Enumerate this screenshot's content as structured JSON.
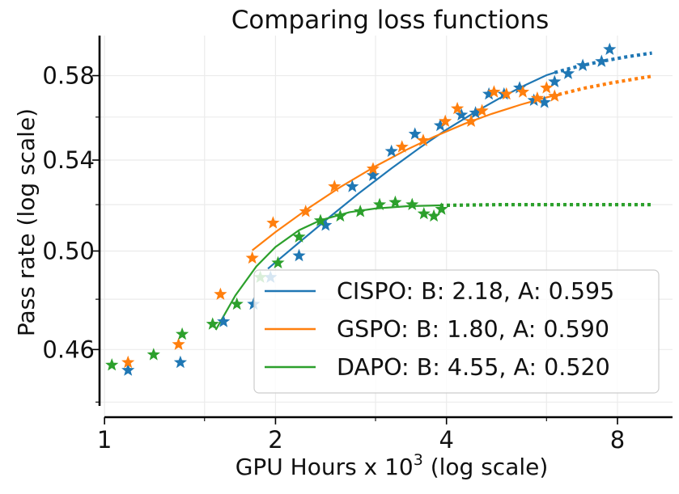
{
  "chart_data": {
    "type": "scatter",
    "title": "Comparing loss functions",
    "xlabel_parts": [
      "GPU Hours x 10",
      "3",
      " (log scale)"
    ],
    "ylabel": "Pass rate (log scale)",
    "x_scale": "log2",
    "y_scale": "log",
    "xlim": [
      0.98,
      10.0
    ],
    "ylim": [
      0.435,
      0.6
    ],
    "x_ticks": [
      {
        "value": 1,
        "label": "1"
      },
      {
        "value": 2,
        "label": "2"
      },
      {
        "value": 4,
        "label": "4"
      },
      {
        "value": 8,
        "label": "8"
      }
    ],
    "y_ticks": [
      {
        "value": 0.46,
        "label": "0.46"
      },
      {
        "value": 0.5,
        "label": "0.50"
      },
      {
        "value": 0.54,
        "label": "0.54"
      },
      {
        "value": 0.58,
        "label": "0.58"
      }
    ],
    "grid": true,
    "legend_position": "bottom-right",
    "marker": "star",
    "series": [
      {
        "name": "CISPO: B: 2.18, A: 0.595",
        "color": "#1f77b4",
        "points": [
          {
            "x": 1.1,
            "y": 0.452
          },
          {
            "x": 1.36,
            "y": 0.455
          },
          {
            "x": 1.62,
            "y": 0.471
          },
          {
            "x": 1.83,
            "y": 0.478
          },
          {
            "x": 1.96,
            "y": 0.489
          },
          {
            "x": 2.2,
            "y": 0.498
          },
          {
            "x": 2.45,
            "y": 0.511
          },
          {
            "x": 2.73,
            "y": 0.528
          },
          {
            "x": 2.97,
            "y": 0.533
          },
          {
            "x": 3.2,
            "y": 0.544
          },
          {
            "x": 3.52,
            "y": 0.552
          },
          {
            "x": 3.9,
            "y": 0.556
          },
          {
            "x": 4.25,
            "y": 0.561
          },
          {
            "x": 4.5,
            "y": 0.562
          },
          {
            "x": 4.75,
            "y": 0.571
          },
          {
            "x": 5.05,
            "y": 0.571
          },
          {
            "x": 5.38,
            "y": 0.574
          },
          {
            "x": 5.7,
            "y": 0.568
          },
          {
            "x": 5.95,
            "y": 0.567
          },
          {
            "x": 6.2,
            "y": 0.577
          },
          {
            "x": 6.55,
            "y": 0.581
          },
          {
            "x": 6.95,
            "y": 0.585
          },
          {
            "x": 7.5,
            "y": 0.587
          },
          {
            "x": 7.75,
            "y": 0.593
          }
        ],
        "fit_solid": [
          [
            1.94,
            0.4926
          ],
          [
            2.2,
            0.5036
          ],
          [
            2.5,
            0.5149
          ],
          [
            2.8,
            0.5249
          ],
          [
            3.2,
            0.5362
          ],
          [
            3.6,
            0.5459
          ],
          [
            4.0,
            0.5541
          ],
          [
            4.5,
            0.5625
          ],
          [
            5.0,
            0.5695
          ],
          [
            5.5,
            0.5753
          ],
          [
            6.0,
            0.5802
          ],
          [
            6.2,
            0.5815
          ]
        ],
        "fit_dotted": [
          [
            6.2,
            0.5815
          ],
          [
            6.8,
            0.5845
          ],
          [
            7.5,
            0.5871
          ],
          [
            8.3,
            0.5893
          ],
          [
            9.2,
            0.5912
          ]
        ]
      },
      {
        "name": "GSPO: B: 1.80, A: 0.590",
        "color": "#ff7f0e",
        "points": [
          {
            "x": 1.1,
            "y": 0.455
          },
          {
            "x": 1.35,
            "y": 0.462
          },
          {
            "x": 1.6,
            "y": 0.482
          },
          {
            "x": 1.82,
            "y": 0.497
          },
          {
            "x": 1.98,
            "y": 0.512
          },
          {
            "x": 2.26,
            "y": 0.517
          },
          {
            "x": 2.54,
            "y": 0.528
          },
          {
            "x": 2.97,
            "y": 0.536
          },
          {
            "x": 3.34,
            "y": 0.546
          },
          {
            "x": 3.64,
            "y": 0.549
          },
          {
            "x": 3.98,
            "y": 0.558
          },
          {
            "x": 4.18,
            "y": 0.564
          },
          {
            "x": 4.42,
            "y": 0.558
          },
          {
            "x": 4.62,
            "y": 0.563
          },
          {
            "x": 4.85,
            "y": 0.572
          },
          {
            "x": 5.1,
            "y": 0.571
          },
          {
            "x": 5.45,
            "y": 0.572
          },
          {
            "x": 5.78,
            "y": 0.569
          },
          {
            "x": 6.0,
            "y": 0.574
          },
          {
            "x": 6.2,
            "y": 0.57
          }
        ],
        "fit_solid": [
          [
            1.82,
            0.5003
          ],
          [
            2.0,
            0.5081
          ],
          [
            2.3,
            0.5189
          ],
          [
            2.6,
            0.5278
          ],
          [
            3.0,
            0.5372
          ],
          [
            3.4,
            0.5447
          ],
          [
            3.8,
            0.5507
          ],
          [
            4.3,
            0.5568
          ],
          [
            4.8,
            0.5615
          ],
          [
            5.4,
            0.5659
          ],
          [
            6.0,
            0.5694
          ],
          [
            6.3,
            0.5708
          ]
        ],
        "fit_dotted": [
          [
            6.3,
            0.5708
          ],
          [
            7.0,
            0.5739
          ],
          [
            7.8,
            0.5764
          ],
          [
            8.6,
            0.5784
          ],
          [
            9.2,
            0.5797
          ]
        ]
      },
      {
        "name": "DAPO: B: 4.55, A: 0.520",
        "color": "#2ca02c",
        "points": [
          {
            "x": 1.03,
            "y": 0.454
          },
          {
            "x": 1.22,
            "y": 0.458
          },
          {
            "x": 1.37,
            "y": 0.466
          },
          {
            "x": 1.55,
            "y": 0.47
          },
          {
            "x": 1.71,
            "y": 0.478
          },
          {
            "x": 1.88,
            "y": 0.489
          },
          {
            "x": 2.02,
            "y": 0.495
          },
          {
            "x": 2.2,
            "y": 0.506
          },
          {
            "x": 2.4,
            "y": 0.513
          },
          {
            "x": 2.6,
            "y": 0.515
          },
          {
            "x": 2.82,
            "y": 0.517
          },
          {
            "x": 3.05,
            "y": 0.52
          },
          {
            "x": 3.25,
            "y": 0.521
          },
          {
            "x": 3.48,
            "y": 0.52
          },
          {
            "x": 3.65,
            "y": 0.516
          },
          {
            "x": 3.8,
            "y": 0.515
          },
          {
            "x": 3.92,
            "y": 0.518
          }
        ],
        "fit_solid": [
          [
            1.57,
            0.4677
          ],
          [
            1.7,
            0.4816
          ],
          [
            1.85,
            0.4935
          ],
          [
            2.0,
            0.5017
          ],
          [
            2.2,
            0.5089
          ],
          [
            2.4,
            0.5132
          ],
          [
            2.7,
            0.5167
          ],
          [
            3.0,
            0.5183
          ],
          [
            3.4,
            0.5193
          ],
          [
            3.9,
            0.5197
          ]
        ],
        "fit_dotted": [
          [
            3.9,
            0.5197
          ],
          [
            5.0,
            0.52
          ],
          [
            7.0,
            0.52
          ],
          [
            9.2,
            0.52
          ]
        ]
      }
    ]
  }
}
